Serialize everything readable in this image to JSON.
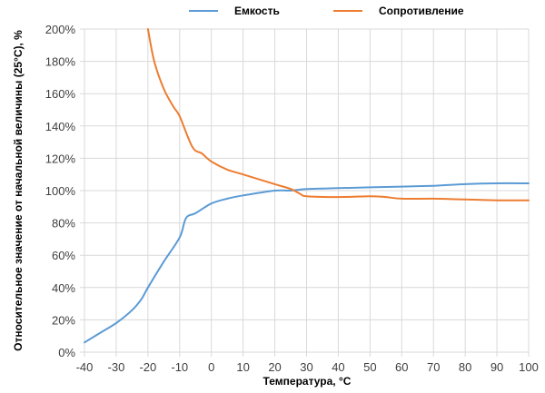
{
  "chart_data": {
    "type": "line",
    "title": "",
    "xlabel": "Температура, °C",
    "ylabel": "Относительное значение от начальной величины (25°C), %",
    "xlim": [
      -40,
      100
    ],
    "ylim": [
      0,
      200
    ],
    "x_ticks": [
      "-40",
      "-30",
      "-20",
      "-10",
      "0",
      "10",
      "20",
      "30",
      "40",
      "50",
      "60",
      "70",
      "80",
      "90",
      "100"
    ],
    "y_ticks": [
      "0%",
      "20%",
      "40%",
      "60%",
      "80%",
      "100%",
      "120%",
      "140%",
      "160%",
      "180%",
      "200%"
    ],
    "grid": true,
    "legend": "top",
    "series": [
      {
        "name": "Емкость",
        "color": "#5b9bd5",
        "points": [
          [
            -40,
            6
          ],
          [
            -35,
            12
          ],
          [
            -30,
            18
          ],
          [
            -25,
            26
          ],
          [
            -22,
            33
          ],
          [
            -20,
            40
          ],
          [
            -15,
            56
          ],
          [
            -10,
            71
          ],
          [
            -8,
            83
          ],
          [
            -5,
            86
          ],
          [
            0,
            92
          ],
          [
            5,
            95
          ],
          [
            10,
            97
          ],
          [
            20,
            100
          ],
          [
            25,
            100
          ],
          [
            30,
            101
          ],
          [
            40,
            101.5
          ],
          [
            50,
            102
          ],
          [
            60,
            102.5
          ],
          [
            70,
            103
          ],
          [
            80,
            104
          ],
          [
            90,
            104.5
          ],
          [
            100,
            104.5
          ]
        ]
      },
      {
        "name": "Сопротивление",
        "color": "#ed7d31",
        "points": [
          [
            -20,
            200
          ],
          [
            -18,
            180
          ],
          [
            -15,
            163
          ],
          [
            -12,
            152
          ],
          [
            -10,
            146
          ],
          [
            -6,
            127
          ],
          [
            -3,
            123
          ],
          [
            0,
            118
          ],
          [
            5,
            113
          ],
          [
            10,
            110
          ],
          [
            20,
            104
          ],
          [
            25,
            101
          ],
          [
            28,
            98
          ],
          [
            30,
            96.5
          ],
          [
            40,
            96
          ],
          [
            50,
            96.5
          ],
          [
            55,
            96
          ],
          [
            60,
            95
          ],
          [
            70,
            95
          ],
          [
            80,
            94.5
          ],
          [
            90,
            94
          ],
          [
            100,
            94
          ]
        ]
      }
    ]
  }
}
